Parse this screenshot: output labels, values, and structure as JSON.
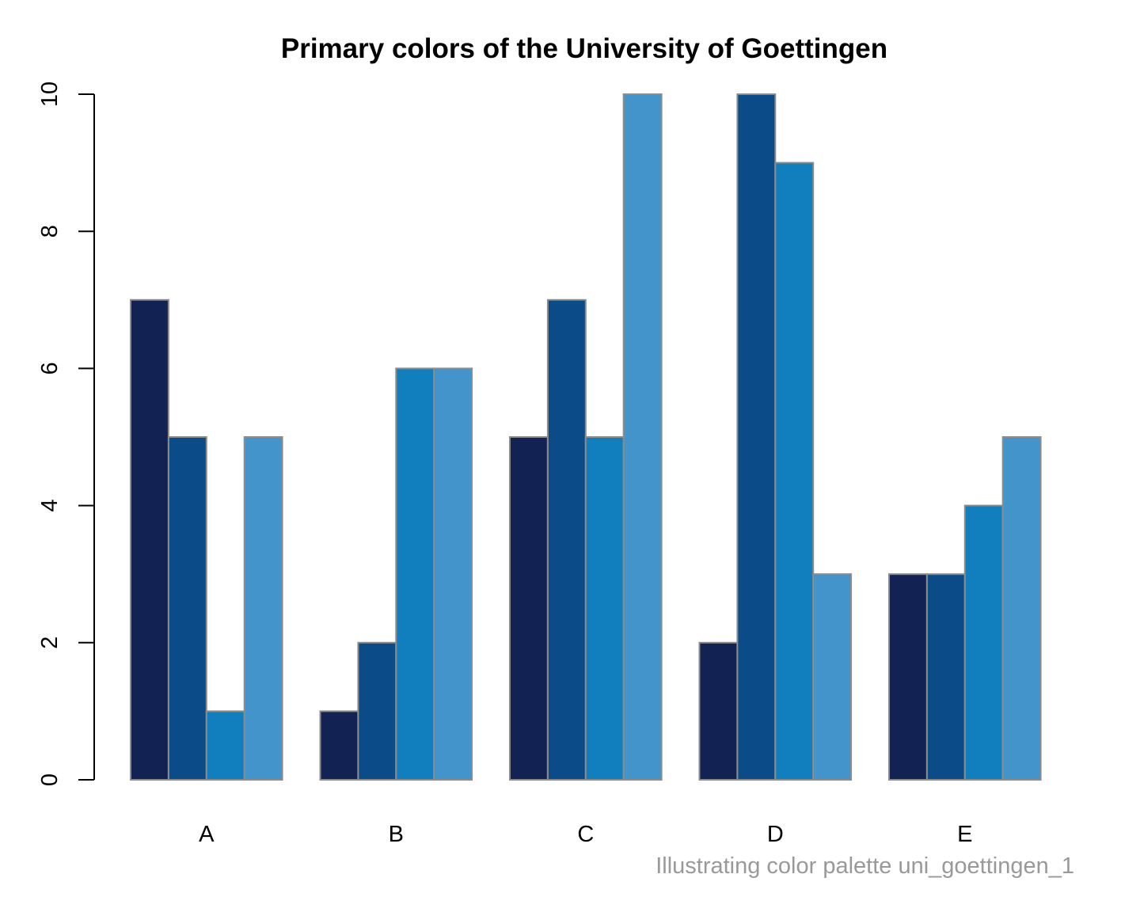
{
  "chart_data": {
    "type": "bar",
    "title": "Primary colors of the University of Goettingen",
    "xlabel": "",
    "ylabel": "",
    "caption": "Illustrating color palette uni_goettingen_1",
    "categories": [
      "A",
      "B",
      "C",
      "D",
      "E"
    ],
    "series": [
      {
        "values": [
          7,
          1,
          5,
          2,
          3
        ],
        "color": "#122353"
      },
      {
        "values": [
          5,
          2,
          7,
          10,
          3
        ],
        "color": "#0b4b88"
      },
      {
        "values": [
          1,
          6,
          5,
          9,
          4
        ],
        "color": "#117fbe"
      },
      {
        "values": [
          5,
          6,
          10,
          3,
          5
        ],
        "color": "#4394ca"
      }
    ],
    "ylim": [
      0,
      10
    ],
    "yticks": [
      "0",
      "2",
      "4",
      "6",
      "8",
      "10"
    ],
    "grid": false,
    "legend": "none",
    "bar_border_color": "#8c8c8c",
    "caption_color": "#999999"
  }
}
